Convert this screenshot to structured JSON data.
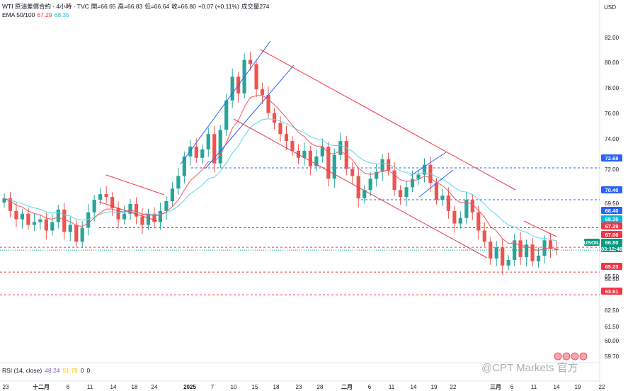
{
  "header": {
    "symbol": "WTI 原油差價合約 · 4小時 · TVC",
    "open_label": "開",
    "open": "=66.65",
    "high_label": "高",
    "high": "=66.83",
    "low_label": "低",
    "low": "=66.64",
    "close_label": "收",
    "close": "=66.80",
    "change": "+0.07 (+0.11%)",
    "volume_label": "成交量",
    "volume": "274",
    "ema_label": "EMA 50/100",
    "ema50": "67.29",
    "ema100": "68.35"
  },
  "rsi": {
    "label": "RSI (14, close)",
    "value": "48.24",
    "ma": "51.78",
    "z1": "0",
    "z2": "0"
  },
  "currency": "USD",
  "watermark": "@CPT Markets 官方",
  "colors": {
    "up": "#26a69a",
    "down": "#ef5350",
    "ema50": "#f7525f",
    "ema100": "#5cd5e8",
    "blue_line": "#2962ff",
    "red_line": "#f23645",
    "price_tag": "#089981"
  },
  "chart_data": {
    "type": "candlestick",
    "y_axis_ticks": [
      "82.00",
      "80.00",
      "78.00",
      "76.00",
      "74.00",
      "72.00",
      "69.50",
      "67.50",
      "65.50",
      "64.50",
      "62.50",
      "61.50",
      "60.00",
      "59.70"
    ],
    "x_axis_ticks": [
      "23",
      "十二月",
      "6",
      "11",
      "14",
      "18",
      "24",
      "2025",
      "7",
      "10",
      "15",
      "18",
      "23",
      "28",
      "二月",
      "6",
      "11",
      "14",
      "19",
      "22",
      "三月",
      "6",
      "11",
      "14",
      "19",
      "22"
    ],
    "price_tags": [
      {
        "label": "72.68",
        "kind": "level-blue"
      },
      {
        "label": "70.40",
        "kind": "level-blue"
      },
      {
        "label": "68.40",
        "kind": "level-blue"
      },
      {
        "label": "68.35",
        "kind": "ema100"
      },
      {
        "label": "67.29",
        "kind": "ema50"
      },
      {
        "label": "67.00",
        "kind": "level-red"
      },
      {
        "label": "USOIL",
        "kind": "symbol"
      },
      {
        "label": "66.80",
        "kind": "last"
      },
      {
        "label": "03:12:48",
        "kind": "countdown"
      },
      {
        "label": "65.23",
        "kind": "level-red"
      },
      {
        "label": "63.61",
        "kind": "level-red"
      }
    ],
    "horizontal_levels": [
      72.68,
      70.4,
      68.4,
      67.0,
      65.23,
      63.61
    ],
    "ema": [
      {
        "name": "EMA 50",
        "last": 67.29
      },
      {
        "name": "EMA 100",
        "last": 68.35
      }
    ],
    "last_price": 66.8,
    "close_path": [
      70.5,
      69.6,
      69.0,
      69.4,
      68.6,
      68.8,
      69.0,
      68.2,
      68.8,
      69.7,
      68.1,
      68.6,
      67.4,
      68.4,
      69.5,
      70.4,
      70.8,
      70.6,
      69.8,
      69.0,
      69.4,
      70.1,
      69.2,
      68.6,
      69.4,
      68.8,
      69.6,
      70.3,
      71.2,
      72.1,
      73.5,
      74.2,
      73.4,
      74.0,
      75.1,
      73.0,
      75.4,
      77.5,
      79.2,
      78.0,
      80.4,
      80.1,
      78.3,
      77.9,
      76.6,
      75.9,
      75.1,
      74.6,
      73.9,
      73.4,
      73.9,
      72.8,
      73.5,
      74.2,
      71.9,
      73.6,
      74.6,
      72.6,
      72.1,
      70.5,
      71.1,
      71.9,
      72.4,
      73.3,
      72.5,
      71.1,
      70.6,
      71.3,
      71.9,
      72.2,
      72.9,
      71.6,
      70.4,
      70.7,
      69.6,
      68.7,
      69.1,
      70.4,
      69.5,
      68.2,
      67.4,
      66.2,
      67.0,
      65.7,
      66.1,
      67.5,
      66.3,
      67.2,
      66.0,
      66.4,
      67.5,
      66.9,
      66.8
    ]
  }
}
